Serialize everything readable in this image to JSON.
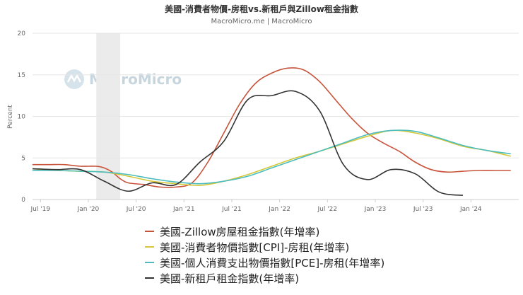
{
  "chart_data": {
    "type": "line",
    "title": "美國-消費者物價-房租vs.新租戶與Zillow租金指數",
    "subtitle": "MacroMicro.me | MacroMicro",
    "ylabel": "Percent",
    "xlabel": "",
    "ylim": [
      0,
      20
    ],
    "yticks": [
      "0",
      "5",
      "10",
      "15",
      "20"
    ],
    "xticks": [
      {
        "label": "Jul '19",
        "date": "2019-07"
      },
      {
        "label": "Jan '20",
        "date": "2020-01"
      },
      {
        "label": "Jul '20",
        "date": "2020-07"
      },
      {
        "label": "Jan '21",
        "date": "2021-01"
      },
      {
        "label": "Jul '21",
        "date": "2021-07"
      },
      {
        "label": "Jan '22",
        "date": "2022-01"
      },
      {
        "label": "Jul '22",
        "date": "2022-07"
      },
      {
        "label": "Jan '23",
        "date": "2023-01"
      },
      {
        "label": "Jul '23",
        "date": "2023-07"
      },
      {
        "label": "Jan '24",
        "date": "2024-01"
      }
    ],
    "x_range": [
      "2019-06",
      "2024-07"
    ],
    "grid": true,
    "shaded_band": {
      "from": "2020-02",
      "to": "2020-05"
    },
    "legend_position": "bottom",
    "watermark": "MacroMicro",
    "series": [
      {
        "name": "美國-Zillow房屋租金指數(年增率)",
        "color": "#c8533a",
        "points": [
          [
            "2019-06",
            4.2
          ],
          [
            "2019-08",
            4.2
          ],
          [
            "2019-10",
            4.2
          ],
          [
            "2019-12",
            4.0
          ],
          [
            "2020-02",
            4.0
          ],
          [
            "2020-03",
            3.8
          ],
          [
            "2020-04",
            3.3
          ],
          [
            "2020-05",
            2.5
          ],
          [
            "2020-06",
            2.0
          ],
          [
            "2020-08",
            1.8
          ],
          [
            "2020-10",
            1.5
          ],
          [
            "2020-12",
            1.5
          ],
          [
            "2021-02",
            2.0
          ],
          [
            "2021-04",
            4.5
          ],
          [
            "2021-06",
            8.0
          ],
          [
            "2021-08",
            11.5
          ],
          [
            "2021-10",
            14.0
          ],
          [
            "2021-12",
            15.2
          ],
          [
            "2022-02",
            15.8
          ],
          [
            "2022-04",
            15.6
          ],
          [
            "2022-06",
            14.2
          ],
          [
            "2022-08",
            12.0
          ],
          [
            "2022-10",
            9.8
          ],
          [
            "2022-12",
            8.0
          ],
          [
            "2023-02",
            6.8
          ],
          [
            "2023-04",
            5.8
          ],
          [
            "2023-06",
            4.5
          ],
          [
            "2023-08",
            3.6
          ],
          [
            "2023-10",
            3.3
          ],
          [
            "2023-12",
            3.4
          ],
          [
            "2024-02",
            3.5
          ],
          [
            "2024-04",
            3.5
          ],
          [
            "2024-06",
            3.5
          ]
        ]
      },
      {
        "name": "美國-消費者物價指數[CPI]-房租(年增率)",
        "color": "#d4c83a",
        "points": [
          [
            "2019-06",
            3.7
          ],
          [
            "2019-09",
            3.5
          ],
          [
            "2019-12",
            3.4
          ],
          [
            "2020-03",
            3.3
          ],
          [
            "2020-06",
            2.8
          ],
          [
            "2020-09",
            2.2
          ],
          [
            "2020-12",
            1.9
          ],
          [
            "2021-03",
            1.7
          ],
          [
            "2021-06",
            2.2
          ],
          [
            "2021-09",
            3.0
          ],
          [
            "2021-12",
            4.0
          ],
          [
            "2022-03",
            5.0
          ],
          [
            "2022-06",
            5.8
          ],
          [
            "2022-09",
            6.7
          ],
          [
            "2022-12",
            7.6
          ],
          [
            "2023-03",
            8.3
          ],
          [
            "2023-06",
            8.0
          ],
          [
            "2023-09",
            7.3
          ],
          [
            "2023-12",
            6.4
          ],
          [
            "2024-03",
            5.9
          ],
          [
            "2024-06",
            5.2
          ]
        ]
      },
      {
        "name": "美國-個人消費支出物價指數[PCE]-房租(年增率)",
        "color": "#4cbcbc",
        "points": [
          [
            "2019-06",
            3.5
          ],
          [
            "2019-09",
            3.5
          ],
          [
            "2019-12",
            3.4
          ],
          [
            "2020-03",
            3.3
          ],
          [
            "2020-06",
            3.0
          ],
          [
            "2020-09",
            2.5
          ],
          [
            "2020-12",
            2.1
          ],
          [
            "2021-03",
            1.9
          ],
          [
            "2021-06",
            2.2
          ],
          [
            "2021-09",
            2.8
          ],
          [
            "2021-12",
            3.8
          ],
          [
            "2022-03",
            4.8
          ],
          [
            "2022-06",
            5.8
          ],
          [
            "2022-09",
            6.8
          ],
          [
            "2022-12",
            7.8
          ],
          [
            "2023-03",
            8.3
          ],
          [
            "2023-06",
            8.2
          ],
          [
            "2023-09",
            7.4
          ],
          [
            "2023-12",
            6.5
          ],
          [
            "2024-03",
            5.9
          ],
          [
            "2024-06",
            5.5
          ]
        ]
      },
      {
        "name": "美國-新租戶租金指數(年增率)",
        "color": "#333333",
        "points": [
          [
            "2019-06",
            3.7
          ],
          [
            "2019-09",
            3.6
          ],
          [
            "2019-12",
            3.6
          ],
          [
            "2020-03",
            2.2
          ],
          [
            "2020-06",
            1.0
          ],
          [
            "2020-09",
            2.0
          ],
          [
            "2020-12",
            1.8
          ],
          [
            "2021-03",
            4.5
          ],
          [
            "2021-06",
            7.0
          ],
          [
            "2021-09",
            12.0
          ],
          [
            "2021-12",
            12.5
          ],
          [
            "2022-03",
            13.0
          ],
          [
            "2022-06",
            10.7
          ],
          [
            "2022-09",
            4.2
          ],
          [
            "2022-12",
            2.4
          ],
          [
            "2023-03",
            3.6
          ],
          [
            "2023-06",
            3.1
          ],
          [
            "2023-09",
            0.9
          ],
          [
            "2023-12",
            0.5
          ]
        ]
      }
    ]
  }
}
